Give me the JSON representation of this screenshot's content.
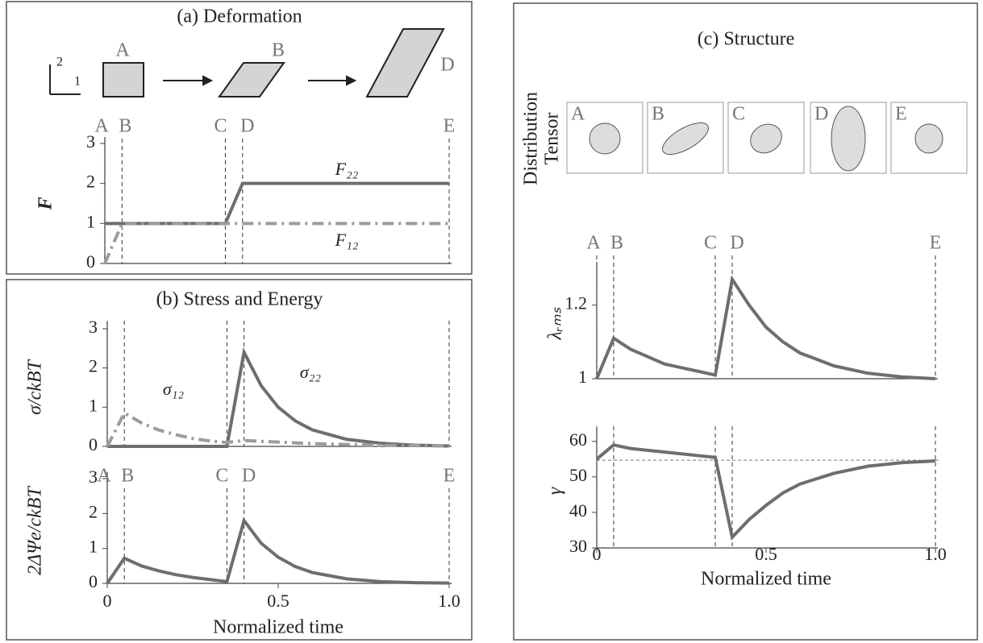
{
  "panels": {
    "a": "(a) Deformation",
    "b": "(b) Stress and Energy",
    "c": "(c) Structure"
  },
  "deformation": {
    "axis_labels": [
      "2",
      "1"
    ],
    "states": [
      "A",
      "B",
      "D"
    ]
  },
  "structure": {
    "ylabel": [
      "Distribution",
      "Tensor"
    ],
    "states": [
      "A",
      "B",
      "C",
      "D",
      "E"
    ]
  },
  "chart_data": [
    {
      "type": "line",
      "ylabel": "F",
      "xlim": [
        0,
        1
      ],
      "ylim": [
        0,
        3
      ],
      "yticks": [
        0,
        1,
        2,
        3
      ],
      "x": [
        0,
        0.05,
        0.35,
        0.4,
        1
      ],
      "markers": {
        "x": [
          0,
          0.05,
          0.35,
          0.4,
          1
        ],
        "labels": [
          "A",
          "B",
          "C",
          "D",
          "E"
        ]
      },
      "series": [
        {
          "name": "F₂₂",
          "color": "#6e6e6e",
          "style": "solid",
          "values": [
            1,
            1,
            1,
            2,
            2
          ]
        },
        {
          "name": "F₁₂",
          "color": "#9c9c9c",
          "style": "dashdot",
          "values": [
            0,
            1,
            1,
            1,
            1
          ]
        }
      ]
    },
    {
      "type": "line",
      "ylabel": "σ/ckBT",
      "xlim": [
        0,
        1
      ],
      "ylim": [
        0,
        3
      ],
      "yticks": [
        0,
        1,
        2,
        3
      ],
      "x": [
        0,
        0.05,
        0.1,
        0.15,
        0.2,
        0.25,
        0.3,
        0.35,
        0.4,
        0.45,
        0.5,
        0.55,
        0.6,
        0.7,
        0.8,
        0.9,
        1
      ],
      "markers": {
        "x": [
          0,
          0.05,
          0.35,
          0.4,
          1
        ]
      },
      "series": [
        {
          "name": "σ₂₂",
          "color": "#6e6e6e",
          "style": "solid",
          "values": [
            0,
            0,
            0,
            0,
            0,
            0,
            0,
            0,
            2.4,
            1.55,
            1.0,
            0.65,
            0.42,
            0.18,
            0.08,
            0.03,
            0.01
          ]
        },
        {
          "name": "σ₁₂",
          "color": "#9c9c9c",
          "style": "dashdot",
          "values": [
            0,
            0.85,
            0.6,
            0.42,
            0.3,
            0.2,
            0.14,
            0.1,
            0.15,
            0.13,
            0.11,
            0.09,
            0.07,
            0.05,
            0.03,
            0.02,
            0.01
          ]
        }
      ]
    },
    {
      "type": "line",
      "ylabel": "2ΔΨe/ckBT",
      "xlabel": "Normalized time",
      "xlim": [
        0,
        1
      ],
      "ylim": [
        0,
        3
      ],
      "yticks": [
        0,
        1,
        2,
        3
      ],
      "xticks": [
        0,
        0.5,
        {
          "value": 1,
          "label": "1.0"
        }
      ],
      "x": [
        0,
        0.05,
        0.1,
        0.15,
        0.2,
        0.25,
        0.3,
        0.35,
        0.4,
        0.45,
        0.5,
        0.55,
        0.6,
        0.7,
        0.8,
        0.9,
        1
      ],
      "markers": {
        "x": [
          0,
          0.05,
          0.35,
          0.4,
          1
        ],
        "labels": [
          "A",
          "B",
          "C",
          "D",
          "E"
        ]
      },
      "color": "#6e6e6e",
      "values": [
        0,
        0.72,
        0.5,
        0.36,
        0.25,
        0.17,
        0.11,
        0.05,
        1.8,
        1.15,
        0.75,
        0.48,
        0.31,
        0.13,
        0.05,
        0.02,
        0.01
      ]
    },
    {
      "type": "line",
      "ylabel": "λᵣₘₛ",
      "xlim": [
        0,
        1
      ],
      "ylim": [
        1,
        1.3
      ],
      "yticks": [
        1,
        1.2
      ],
      "x": [
        0,
        0.05,
        0.1,
        0.15,
        0.2,
        0.25,
        0.3,
        0.35,
        0.4,
        0.45,
        0.5,
        0.55,
        0.6,
        0.7,
        0.8,
        0.9,
        1
      ],
      "markers": {
        "x": [
          0,
          0.05,
          0.35,
          0.4,
          1
        ],
        "labels": [
          "A",
          "B",
          "C",
          "D",
          "E"
        ]
      },
      "color": "#6e6e6e",
      "values": [
        1,
        1.11,
        1.08,
        1.06,
        1.04,
        1.03,
        1.02,
        1.01,
        1.27,
        1.2,
        1.14,
        1.1,
        1.07,
        1.035,
        1.015,
        1.005,
        1.0
      ]
    },
    {
      "type": "line",
      "ylabel": "γ",
      "xlabel": "Normalized time",
      "xlim": [
        0,
        1
      ],
      "ylim": [
        30,
        62
      ],
      "yticks": [
        30,
        40,
        50,
        60
      ],
      "xticks": [
        0,
        0.5,
        {
          "value": 1,
          "label": "1.0"
        }
      ],
      "reference_line": 54.7,
      "x": [
        0,
        0.05,
        0.1,
        0.15,
        0.2,
        0.25,
        0.3,
        0.35,
        0.4,
        0.45,
        0.5,
        0.55,
        0.6,
        0.7,
        0.8,
        0.9,
        1
      ],
      "markers": {
        "x": [
          0,
          0.05,
          0.35,
          0.4,
          1
        ]
      },
      "color": "#6e6e6e",
      "values": [
        55,
        59,
        58,
        57.5,
        57,
        56.5,
        56,
        55.5,
        33,
        38,
        42,
        45.5,
        48,
        51,
        53,
        54,
        54.5
      ]
    }
  ]
}
